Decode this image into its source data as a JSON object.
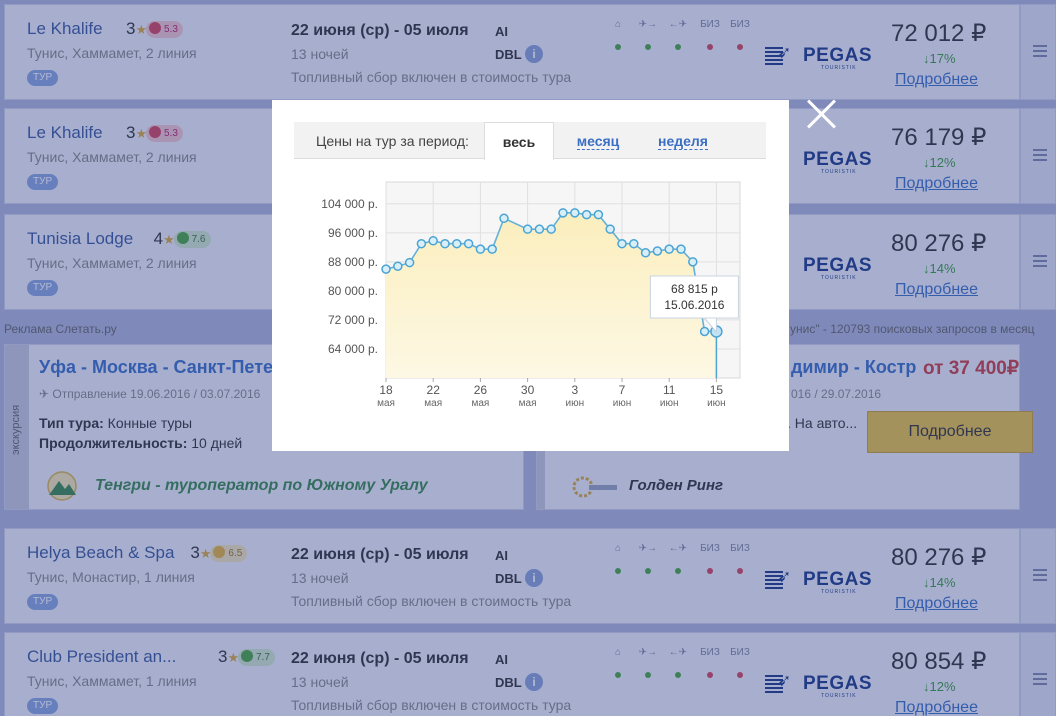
{
  "tours": [
    {
      "hotel": "Le Khalife",
      "stars": "3",
      "rating": "5.3",
      "rating_kind": "bad",
      "location": "Тунис, Хаммамет, 2 линия",
      "tag": "ТУР",
      "dates": "22 июня (ср) - 05 июля",
      "nights": "13 ночей",
      "fuel": "Топливный сбор включен в стоимость тура",
      "meal": "AI",
      "room": "DBL",
      "price": "72 012 ₽",
      "delta": "↓17%",
      "more": "Подробнее"
    },
    {
      "hotel": "Le Khalife",
      "stars": "3",
      "rating": "5.3",
      "rating_kind": "bad",
      "location": "Тунис, Хаммамет, 2 линия",
      "tag": "ТУР",
      "dates": "",
      "nights": "",
      "fuel": "",
      "meal": "",
      "room": "",
      "price": "76 179 ₽",
      "delta": "↓12%",
      "more": "Подробнее"
    },
    {
      "hotel": "Tunisia Lodge",
      "stars": "4",
      "rating": "7.6",
      "rating_kind": "good",
      "location": "Тунис, Хаммамет, 2 линия",
      "tag": "ТУР",
      "dates": "",
      "nights": "",
      "fuel": "",
      "meal": "",
      "room": "",
      "price": "80 276 ₽",
      "delta": "↓14%",
      "more": "Подробнее"
    },
    {
      "hotel": "Helya Beach & Spa",
      "stars": "3",
      "rating": "6.5",
      "rating_kind": "mid",
      "location": "Тунис, Монастир, 1 линия",
      "tag": "ТУР",
      "dates": "22 июня (ср) - 05 июля",
      "nights": "13 ночей",
      "fuel": "Топливный сбор включен в стоимость тура",
      "meal": "AI",
      "room": "DBL",
      "price": "80 276 ₽",
      "delta": "↓14%",
      "more": "Подробнее"
    },
    {
      "hotel": "Club President an...",
      "stars": "3",
      "rating": "7.7",
      "rating_kind": "good",
      "location": "Тунис, Хаммамет, 1 линия",
      "tag": "ТУР",
      "dates": "22 июня (ср) - 05 июля",
      "nights": "13 ночей",
      "fuel": "Топливный сбор включен в стоимость тура",
      "meal": "AI",
      "room": "DBL",
      "price": "80 854 ₽",
      "delta": "↓12%",
      "more": "Подробнее"
    }
  ],
  "service_labels": [
    "",
    "",
    "",
    "БИЗ",
    "БИЗ"
  ],
  "service_icons": [
    "home-icon",
    "plane-out-icon",
    "plane-back-icon",
    "business-out-icon",
    "business-back-icon"
  ],
  "service_colors": [
    "#4aa63e",
    "#4aa63e",
    "#4aa63e",
    "#d3455b",
    "#d3455b"
  ],
  "operator": {
    "name": "PEGAS",
    "sub": "TOURISTIK"
  },
  "ads": {
    "label": "Реклама Слетать.ру",
    "right_text": "унис\" - 120793 поисковых запросов в месяц",
    "ad1": {
      "category": "экскурсия",
      "title": "Уфа - Москва - Санкт-Петер",
      "dates": "Отправление 19.06.2016 / 03.07.2016",
      "type_label": "Тип тура:",
      "type_value": "Конные туры",
      "duration_label": "Продолжительность:",
      "duration_value": "10 дней",
      "operator": "Тенгри - туроператор по Южному Уралу"
    },
    "ad2": {
      "title": "димир - Костр",
      "price": "от 37 400₽",
      "dates": "016 / 29.07.2016",
      "desc": ". На авто...",
      "button": "Подробнее",
      "operator": "Голден Ринг"
    }
  },
  "modal": {
    "period_label": "Цены на тур за период:",
    "tabs": [
      "весь",
      "месяц",
      "неделя"
    ],
    "active_tab": "весь"
  },
  "chart_data": {
    "type": "area",
    "title": "",
    "xlabel": "",
    "ylabel": "",
    "ylim": [
      56000,
      110000
    ],
    "y_ticks": [
      {
        "value": 64000,
        "label": "64 000 р."
      },
      {
        "value": 72000,
        "label": "72 000 р."
      },
      {
        "value": 80000,
        "label": "80 000 р."
      },
      {
        "value": 88000,
        "label": "88 000 р."
      },
      {
        "value": 96000,
        "label": "96 000 р."
      },
      {
        "value": 104000,
        "label": "104 000 р."
      }
    ],
    "x_ticks": [
      {
        "date": "2016-05-18",
        "day": "18",
        "month": "мая"
      },
      {
        "date": "2016-05-22",
        "day": "22",
        "month": "мая"
      },
      {
        "date": "2016-05-26",
        "day": "26",
        "month": "мая"
      },
      {
        "date": "2016-05-30",
        "day": "30",
        "month": "мая"
      },
      {
        "date": "2016-06-03",
        "day": "3",
        "month": "июн"
      },
      {
        "date": "2016-06-07",
        "day": "7",
        "month": "июн"
      },
      {
        "date": "2016-06-11",
        "day": "11",
        "month": "июн"
      },
      {
        "date": "2016-06-15",
        "day": "15",
        "month": "июн"
      }
    ],
    "x_range": [
      "2016-05-18",
      "2016-06-17"
    ],
    "points": [
      {
        "date": "2016-05-18",
        "price": 86000
      },
      {
        "date": "2016-05-19",
        "price": 86800
      },
      {
        "date": "2016-05-20",
        "price": 87800
      },
      {
        "date": "2016-05-21",
        "price": 93000
      },
      {
        "date": "2016-05-22",
        "price": 93800
      },
      {
        "date": "2016-05-23",
        "price": 93000
      },
      {
        "date": "2016-05-24",
        "price": 93000
      },
      {
        "date": "2016-05-25",
        "price": 93000
      },
      {
        "date": "2016-05-26",
        "price": 91500
      },
      {
        "date": "2016-05-27",
        "price": 91500
      },
      {
        "date": "2016-05-28",
        "price": 100000
      },
      {
        "date": "2016-05-30",
        "price": 97000
      },
      {
        "date": "2016-05-31",
        "price": 97000
      },
      {
        "date": "2016-06-01",
        "price": 97000
      },
      {
        "date": "2016-06-02",
        "price": 101500
      },
      {
        "date": "2016-06-03",
        "price": 101500
      },
      {
        "date": "2016-06-04",
        "price": 101000
      },
      {
        "date": "2016-06-05",
        "price": 101000
      },
      {
        "date": "2016-06-06",
        "price": 97000
      },
      {
        "date": "2016-06-07",
        "price": 93000
      },
      {
        "date": "2016-06-08",
        "price": 93000
      },
      {
        "date": "2016-06-09",
        "price": 90500
      },
      {
        "date": "2016-06-10",
        "price": 91000
      },
      {
        "date": "2016-06-11",
        "price": 91500
      },
      {
        "date": "2016-06-12",
        "price": 91500
      },
      {
        "date": "2016-06-13",
        "price": 88000
      },
      {
        "date": "2016-06-14",
        "price": 68815
      },
      {
        "date": "2016-06-15",
        "price": 68815
      }
    ],
    "highlight": {
      "date": "2016-06-15",
      "price_label": "68 815 р",
      "date_label": "15.06.2016"
    },
    "grid": true,
    "colors": {
      "line": "#63b1d8",
      "fill": "#fbf0c8",
      "marker_fill": "#d8eef8",
      "marker_stroke": "#4aa4d4"
    }
  }
}
